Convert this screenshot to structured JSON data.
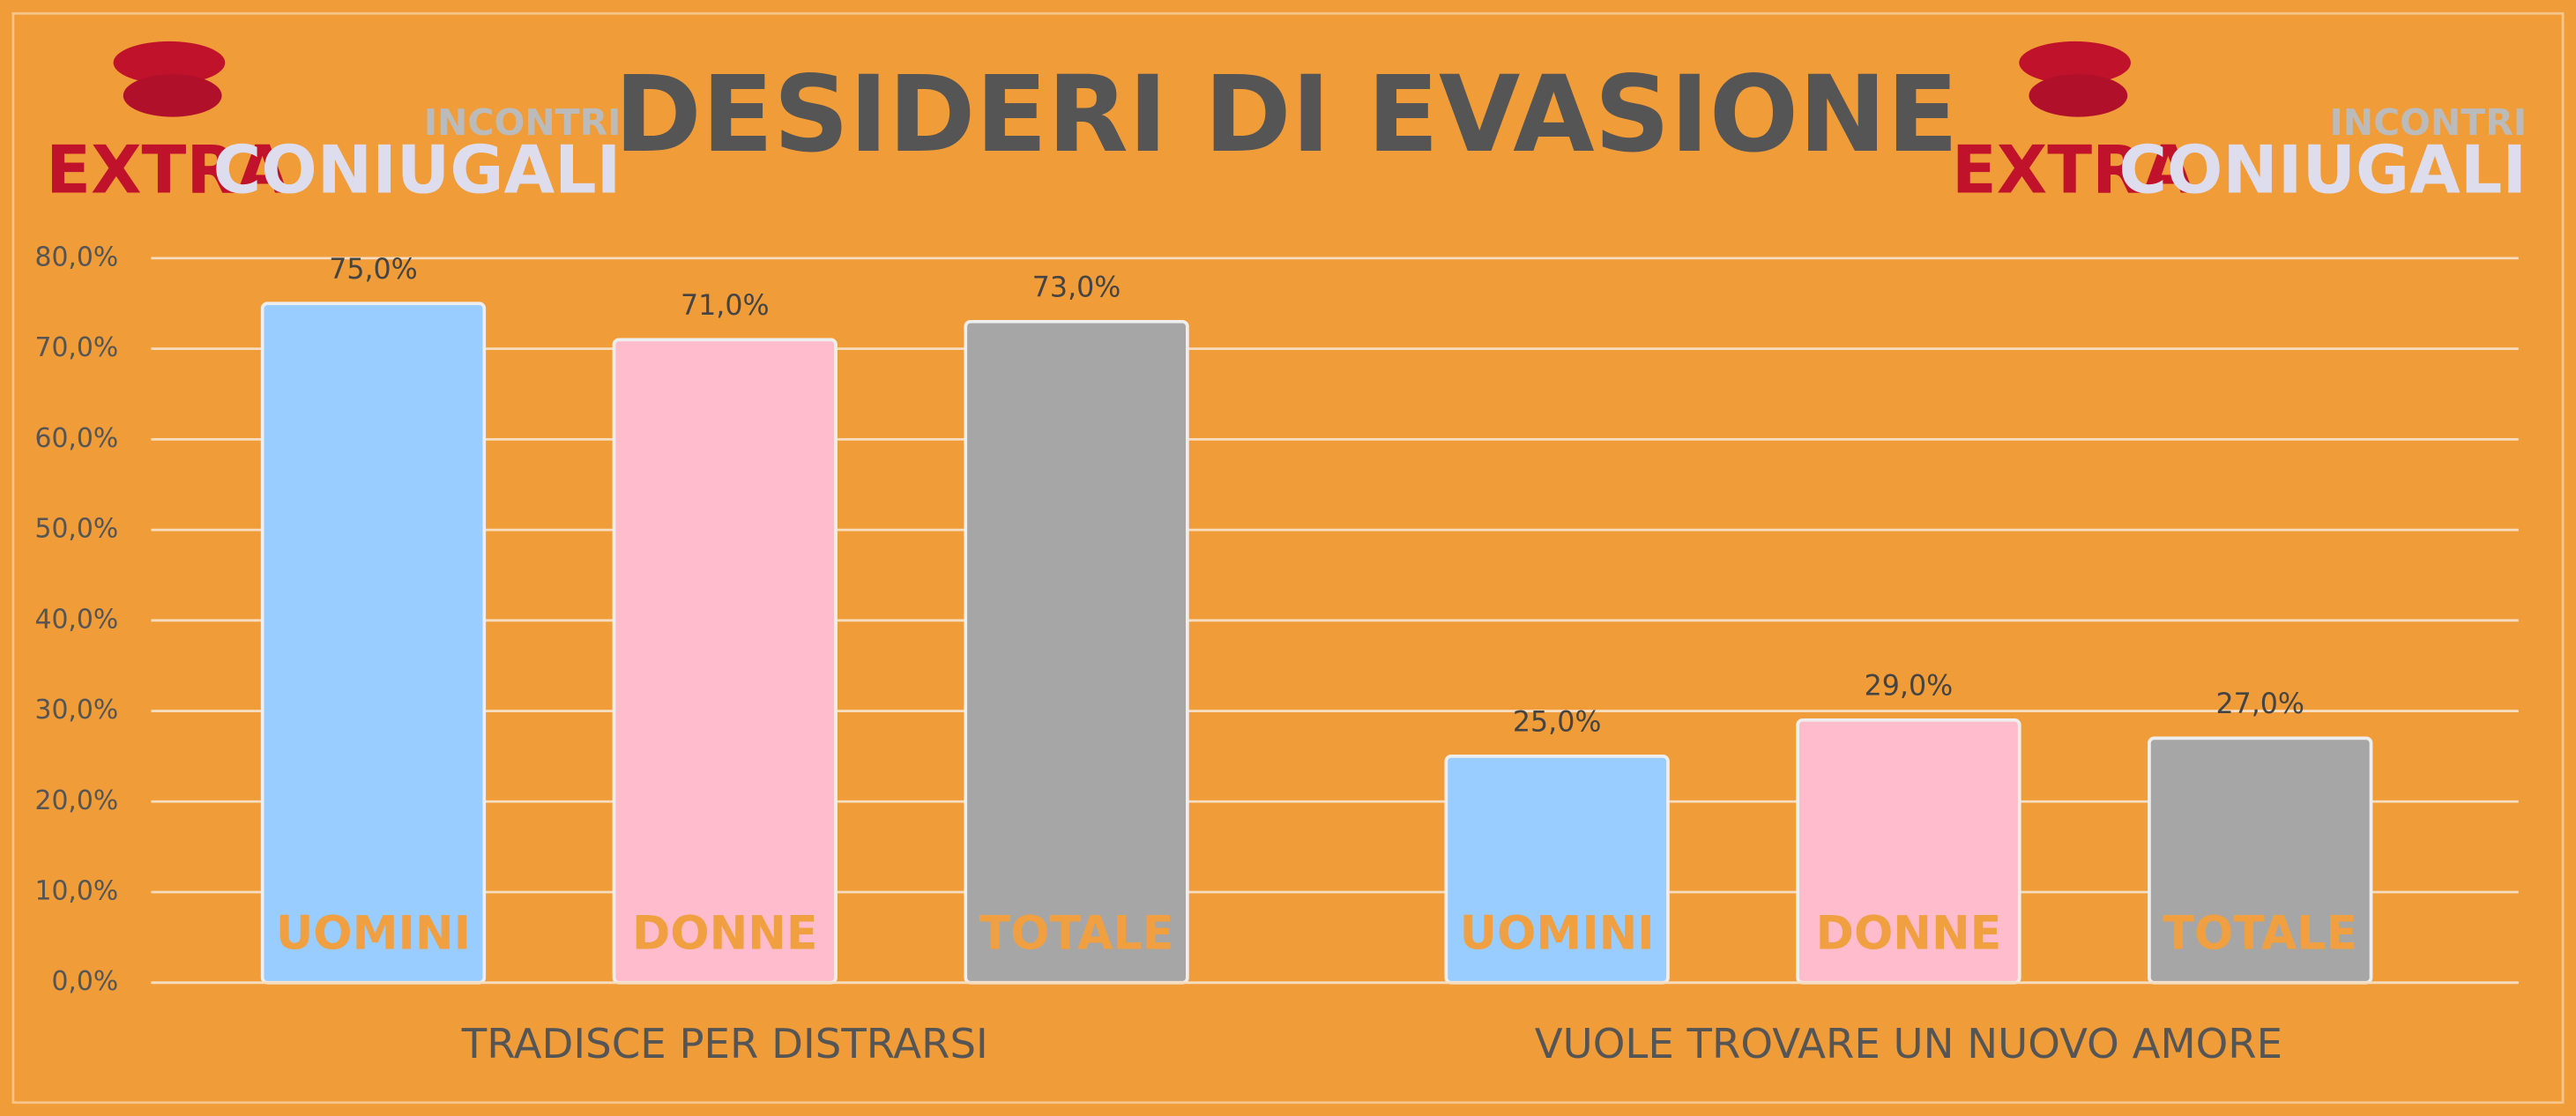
{
  "chart_data": {
    "type": "bar",
    "title": "DESIDERI DI EVASIONE",
    "logo": {
      "top": "INCONTRI",
      "left": "EXTRA",
      "right": "CONIUGALI"
    },
    "categories": [
      "TRADISCE PER DISTRARSI",
      "VUOLE TROVARE UN NUOVO AMORE"
    ],
    "series": [
      {
        "name": "UOMINI",
        "color": "#99ccff",
        "values": [
          75,
          25
        ],
        "value_labels": [
          "75,0%",
          "25,0%"
        ]
      },
      {
        "name": "DONNE",
        "color": "#ffbccc",
        "values": [
          71,
          29
        ],
        "value_labels": [
          "71,0%",
          "29,0%"
        ]
      },
      {
        "name": "TOTALE",
        "color": "#a6a6a6",
        "values": [
          73,
          27
        ],
        "value_labels": [
          "73,0%",
          "27,0%"
        ]
      }
    ],
    "ylim": [
      0,
      80
    ],
    "yticks": [
      {
        "value": 0,
        "label": "0,0%"
      },
      {
        "value": 10,
        "label": "10,0%"
      },
      {
        "value": 20,
        "label": "20,0%"
      },
      {
        "value": 30,
        "label": "30,0%"
      },
      {
        "value": 40,
        "label": "40,0%"
      },
      {
        "value": 50,
        "label": "50,0%"
      },
      {
        "value": 60,
        "label": "60,0%"
      },
      {
        "value": 70,
        "label": "70,0%"
      },
      {
        "value": 80,
        "label": "80,0%"
      }
    ],
    "grid": true
  }
}
